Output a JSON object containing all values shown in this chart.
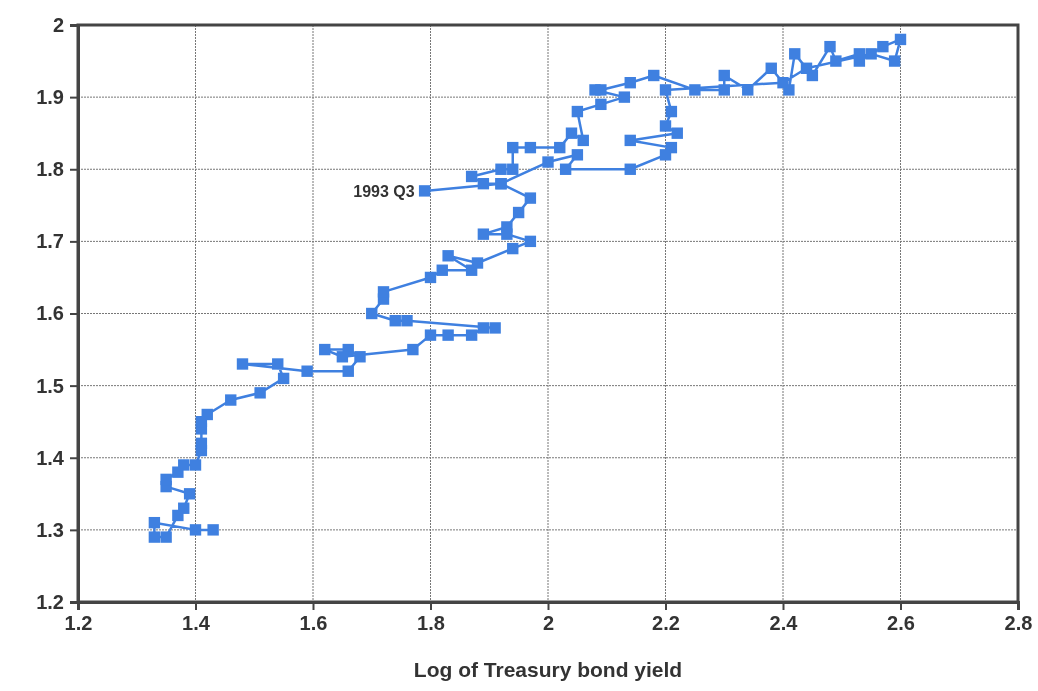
{
  "chart_data": {
    "type": "line",
    "xlabel": "Log of Treasury bond yield",
    "marker": "square",
    "line_style": "solid",
    "grid": true,
    "xlim": [
      1.2,
      2.8
    ],
    "xticks": [
      1.2,
      1.4,
      1.6,
      1.8,
      2,
      2.2,
      2.4,
      2.6,
      2.8
    ],
    "ylim": [
      1.2,
      2
    ],
    "yticks": [
      1.2,
      1.3,
      1.4,
      1.5,
      1.6,
      1.7,
      1.8,
      1.9,
      2
    ],
    "annotations": [
      {
        "text": "1993 Q3",
        "x": 1.79,
        "y": 1.77
      }
    ],
    "series": [
      {
        "color": "#3f80e0",
        "x": [
          1.43,
          1.4,
          1.33,
          1.33,
          1.35,
          1.37,
          1.38,
          1.39,
          1.35,
          1.35,
          1.37,
          1.38,
          1.4,
          1.41,
          1.41,
          1.41,
          1.41,
          1.42,
          1.46,
          1.51,
          1.55,
          1.54,
          1.48,
          1.59,
          1.66,
          1.68,
          1.66,
          1.62,
          1.65,
          1.77,
          1.8,
          1.83,
          1.87,
          1.89,
          1.91,
          1.76,
          1.74,
          1.7,
          1.72,
          1.72,
          1.8,
          1.82,
          1.87,
          1.83,
          1.88,
          1.94,
          1.97,
          1.93,
          1.89,
          1.93,
          1.95,
          1.97,
          1.92,
          1.89,
          1.87,
          1.92,
          1.94,
          1.94,
          1.97,
          2.02,
          2.04,
          2.06,
          2.05,
          2.09,
          2.13,
          2.08,
          2.09,
          2.14,
          2.18,
          2.25,
          2.3,
          2.3,
          2.34,
          2.38,
          2.41,
          2.42,
          2.45,
          2.48,
          2.49,
          2.53,
          2.53,
          2.57,
          2.6,
          2.59,
          2.55,
          2.44,
          2.4,
          2.2,
          2.21,
          2.2,
          2.22,
          2.14,
          2.21,
          2.2,
          2.14,
          2.03,
          2.05,
          2.0,
          1.92,
          1.79
        ],
        "values": [
          1.3,
          1.3,
          1.31,
          1.29,
          1.29,
          1.32,
          1.33,
          1.35,
          1.36,
          1.37,
          1.38,
          1.39,
          1.39,
          1.41,
          1.42,
          1.44,
          1.45,
          1.46,
          1.48,
          1.49,
          1.51,
          1.53,
          1.53,
          1.52,
          1.52,
          1.54,
          1.55,
          1.55,
          1.54,
          1.55,
          1.57,
          1.57,
          1.57,
          1.58,
          1.58,
          1.59,
          1.59,
          1.6,
          1.62,
          1.63,
          1.65,
          1.66,
          1.66,
          1.68,
          1.67,
          1.69,
          1.7,
          1.71,
          1.71,
          1.72,
          1.74,
          1.76,
          1.78,
          1.78,
          1.79,
          1.8,
          1.8,
          1.83,
          1.83,
          1.83,
          1.85,
          1.84,
          1.88,
          1.89,
          1.9,
          1.91,
          1.91,
          1.92,
          1.93,
          1.91,
          1.91,
          1.93,
          1.91,
          1.94,
          1.91,
          1.96,
          1.93,
          1.97,
          1.95,
          1.96,
          1.95,
          1.97,
          1.98,
          1.95,
          1.96,
          1.94,
          1.92,
          1.91,
          1.88,
          1.86,
          1.85,
          1.84,
          1.83,
          1.82,
          1.8,
          1.8,
          1.82,
          1.81,
          1.78,
          1.77
        ]
      }
    ]
  }
}
